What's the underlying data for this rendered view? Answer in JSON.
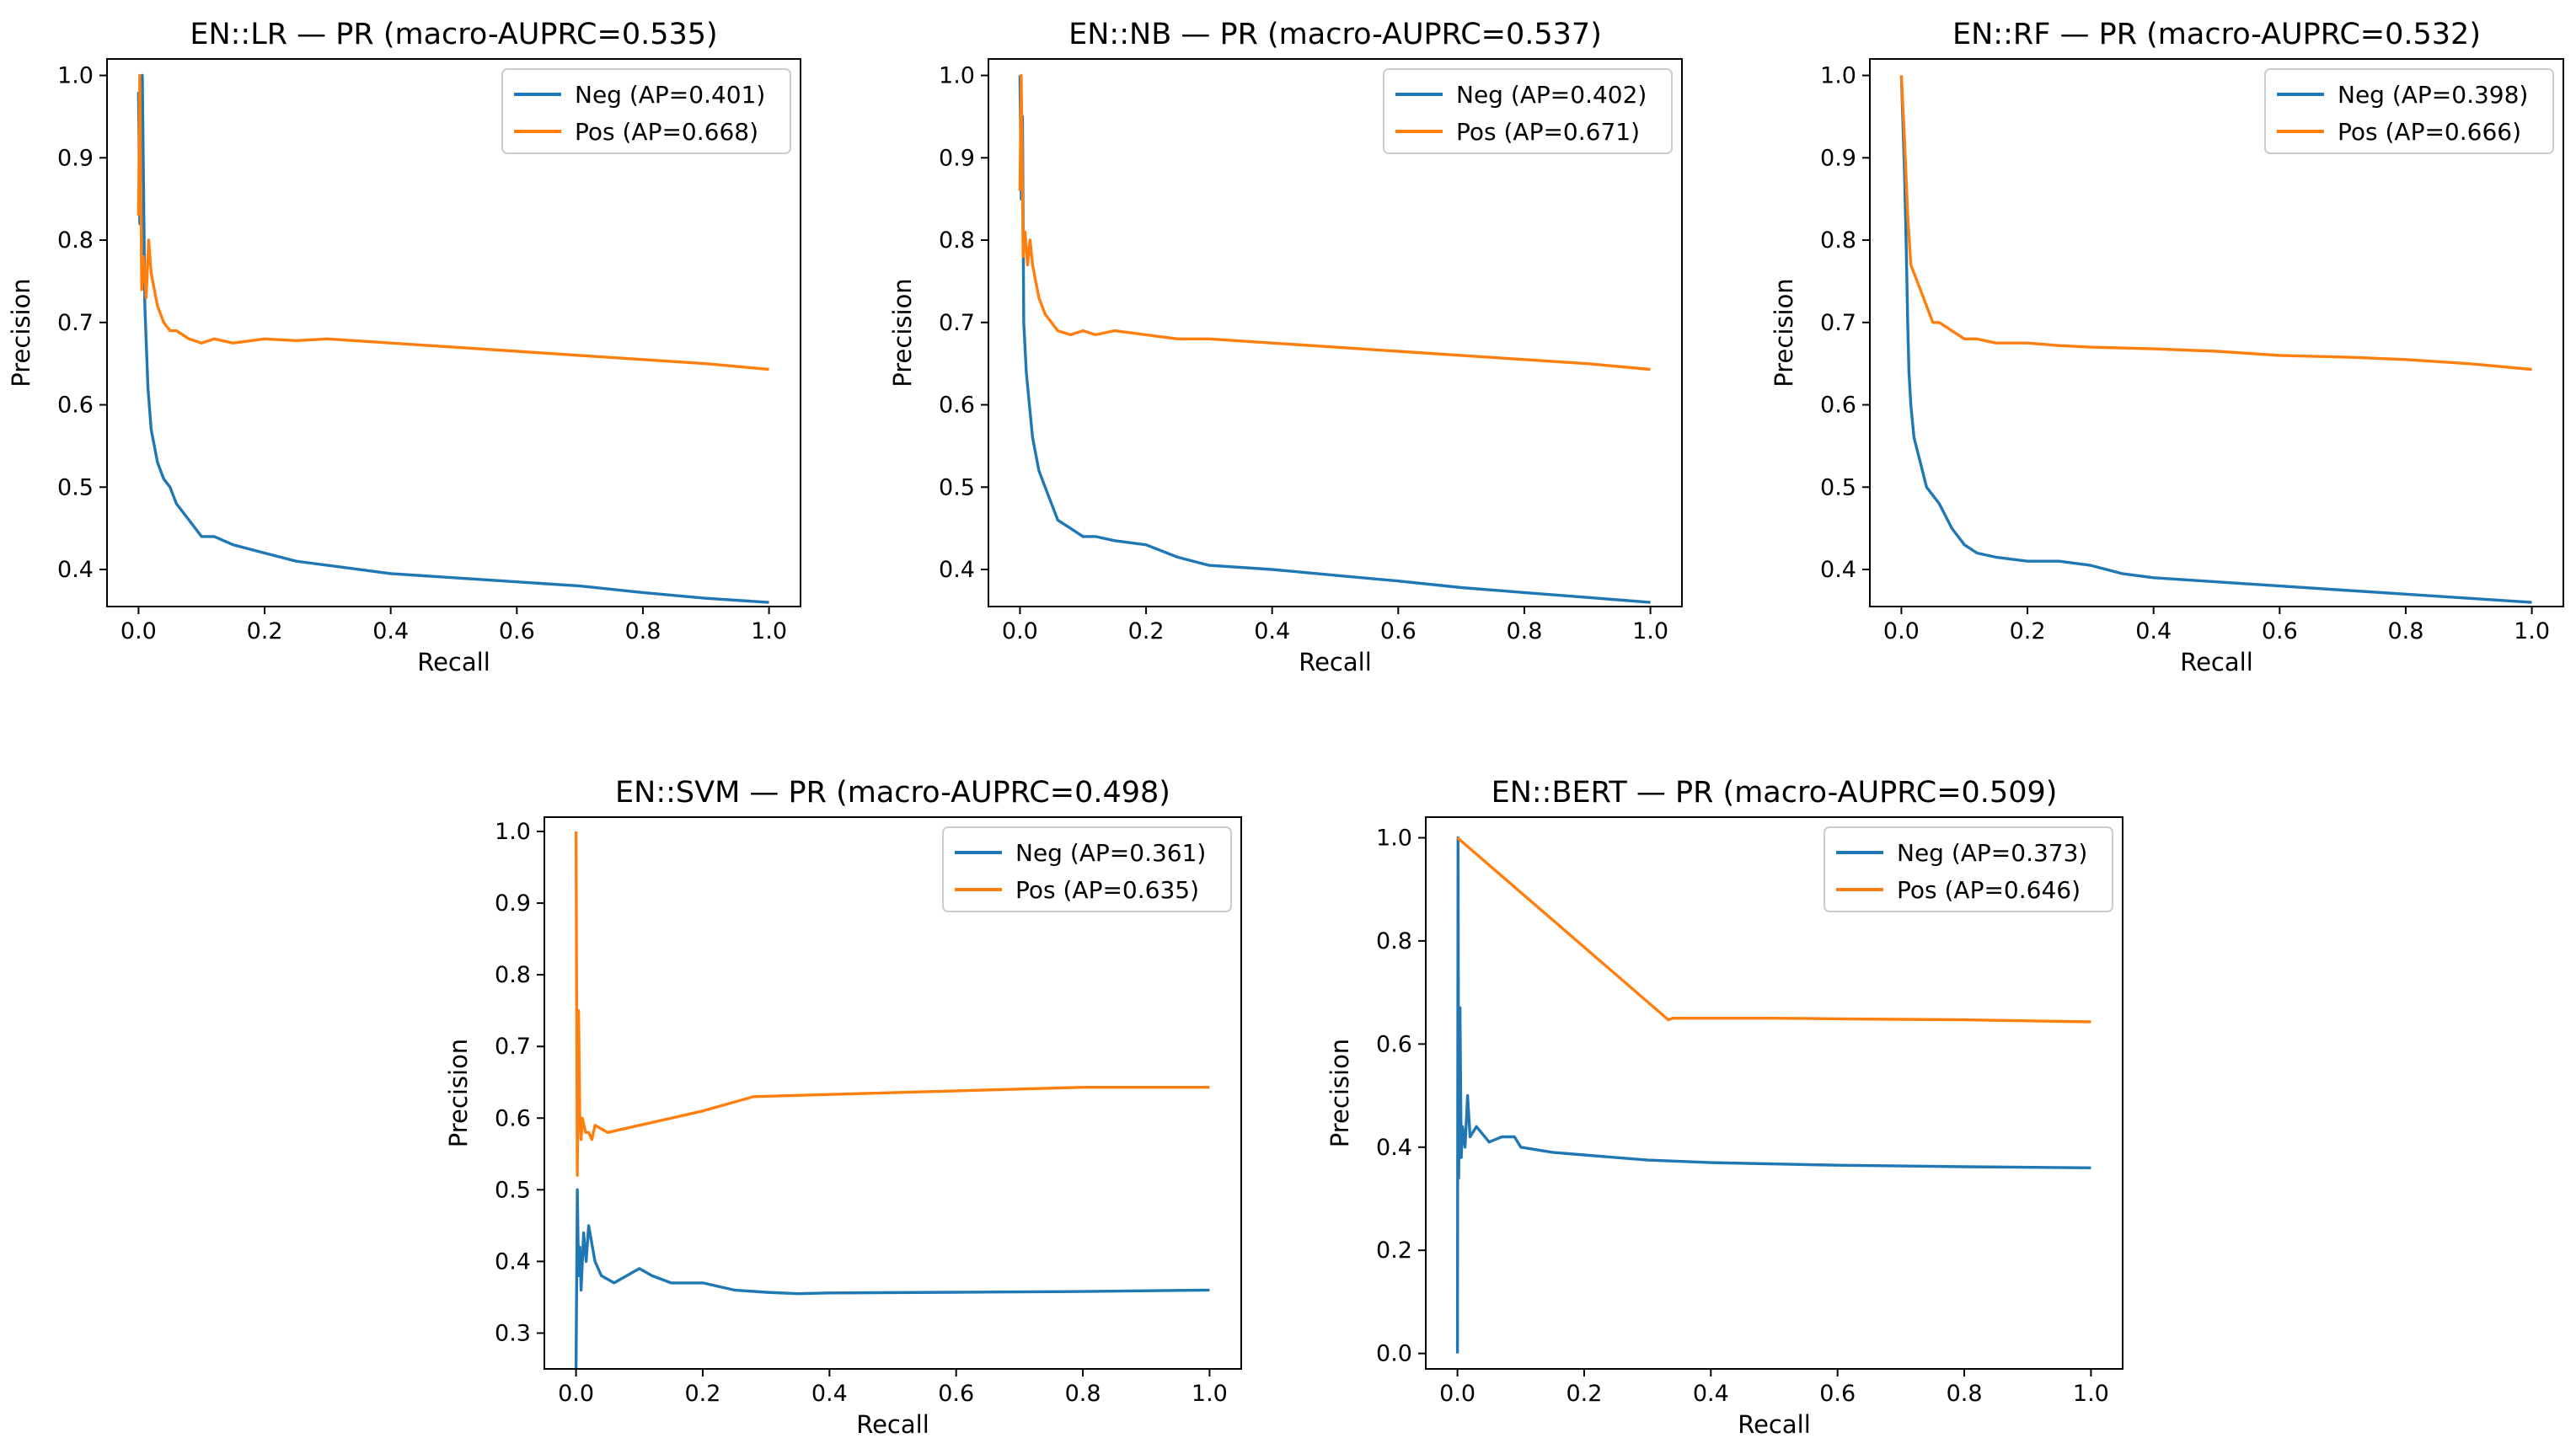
{
  "colors": {
    "neg": "#1f77b4",
    "pos": "#ff7f0e"
  },
  "chart_data": [
    {
      "type": "line",
      "title": "EN::LR — PR (macro-AUPRC=0.535)",
      "xlabel": "Recall",
      "ylabel": "Precision",
      "xlim": [
        -0.05,
        1.05
      ],
      "ylim": [
        0.355,
        1.02
      ],
      "xticks": [
        0.0,
        0.2,
        0.4,
        0.6,
        0.8,
        1.0
      ],
      "xtick_labels": [
        "0.0",
        "0.2",
        "0.4",
        "0.6",
        "0.8",
        "1.0"
      ],
      "yticks": [
        0.4,
        0.5,
        0.6,
        0.7,
        0.8,
        0.9,
        1.0
      ],
      "ytick_labels": [
        "0.4",
        "0.5",
        "0.6",
        "0.7",
        "0.8",
        "0.9",
        "1.0"
      ],
      "legend_position": "top-right",
      "series": [
        {
          "name": "Neg (AP=0.401)",
          "color_key": "neg",
          "x": [
            0.0,
            0.002,
            0.004,
            0.006,
            0.01,
            0.015,
            0.02,
            0.03,
            0.04,
            0.05,
            0.06,
            0.08,
            0.1,
            0.12,
            0.15,
            0.2,
            0.25,
            0.3,
            0.4,
            0.5,
            0.6,
            0.7,
            0.8,
            0.9,
            1.0
          ],
          "y": [
            0.98,
            0.82,
            0.9,
            1.0,
            0.72,
            0.62,
            0.57,
            0.53,
            0.51,
            0.5,
            0.48,
            0.46,
            0.44,
            0.44,
            0.43,
            0.42,
            0.41,
            0.405,
            0.395,
            0.39,
            0.385,
            0.38,
            0.372,
            0.365,
            0.36
          ]
        },
        {
          "name": "Pos (AP=0.668)",
          "color_key": "pos",
          "x": [
            0.0,
            0.002,
            0.005,
            0.008,
            0.012,
            0.016,
            0.02,
            0.025,
            0.03,
            0.04,
            0.05,
            0.06,
            0.08,
            0.1,
            0.12,
            0.15,
            0.2,
            0.25,
            0.3,
            0.4,
            0.5,
            0.6,
            0.7,
            0.8,
            0.9,
            1.0
          ],
          "y": [
            0.83,
            1.0,
            0.74,
            0.78,
            0.73,
            0.8,
            0.76,
            0.74,
            0.72,
            0.7,
            0.69,
            0.69,
            0.68,
            0.675,
            0.68,
            0.675,
            0.68,
            0.678,
            0.68,
            0.675,
            0.67,
            0.665,
            0.66,
            0.655,
            0.65,
            0.643
          ]
        }
      ]
    },
    {
      "type": "line",
      "title": "EN::NB — PR (macro-AUPRC=0.537)",
      "xlabel": "Recall",
      "ylabel": "Precision",
      "xlim": [
        -0.05,
        1.05
      ],
      "ylim": [
        0.355,
        1.02
      ],
      "xticks": [
        0.0,
        0.2,
        0.4,
        0.6,
        0.8,
        1.0
      ],
      "xtick_labels": [
        "0.0",
        "0.2",
        "0.4",
        "0.6",
        "0.8",
        "1.0"
      ],
      "yticks": [
        0.4,
        0.5,
        0.6,
        0.7,
        0.8,
        0.9,
        1.0
      ],
      "ytick_labels": [
        "0.4",
        "0.5",
        "0.6",
        "0.7",
        "0.8",
        "0.9",
        "1.0"
      ],
      "legend_position": "top-right",
      "series": [
        {
          "name": "Neg (AP=0.402)",
          "color_key": "neg",
          "x": [
            0.0,
            0.002,
            0.004,
            0.006,
            0.01,
            0.015,
            0.02,
            0.03,
            0.04,
            0.05,
            0.06,
            0.08,
            0.1,
            0.12,
            0.15,
            0.2,
            0.25,
            0.3,
            0.4,
            0.5,
            0.6,
            0.7,
            0.8,
            0.9,
            1.0
          ],
          "y": [
            1.0,
            0.85,
            0.95,
            0.7,
            0.64,
            0.6,
            0.56,
            0.52,
            0.5,
            0.48,
            0.46,
            0.45,
            0.44,
            0.44,
            0.435,
            0.43,
            0.415,
            0.405,
            0.4,
            0.393,
            0.386,
            0.378,
            0.372,
            0.366,
            0.36
          ]
        },
        {
          "name": "Pos (AP=0.671)",
          "color_key": "pos",
          "x": [
            0.0,
            0.002,
            0.005,
            0.008,
            0.012,
            0.016,
            0.02,
            0.025,
            0.03,
            0.04,
            0.05,
            0.06,
            0.08,
            0.1,
            0.12,
            0.15,
            0.2,
            0.25,
            0.3,
            0.4,
            0.5,
            0.6,
            0.7,
            0.8,
            0.9,
            1.0
          ],
          "y": [
            0.86,
            1.0,
            0.78,
            0.81,
            0.77,
            0.8,
            0.77,
            0.75,
            0.73,
            0.71,
            0.7,
            0.69,
            0.685,
            0.69,
            0.685,
            0.69,
            0.685,
            0.68,
            0.68,
            0.675,
            0.67,
            0.665,
            0.66,
            0.655,
            0.65,
            0.643
          ]
        }
      ]
    },
    {
      "type": "line",
      "title": "EN::RF — PR (macro-AUPRC=0.532)",
      "xlabel": "Recall",
      "ylabel": "Precision",
      "xlim": [
        -0.05,
        1.05
      ],
      "ylim": [
        0.355,
        1.02
      ],
      "xticks": [
        0.0,
        0.2,
        0.4,
        0.6,
        0.8,
        1.0
      ],
      "xtick_labels": [
        "0.0",
        "0.2",
        "0.4",
        "0.6",
        "0.8",
        "1.0"
      ],
      "yticks": [
        0.4,
        0.5,
        0.6,
        0.7,
        0.8,
        0.9,
        1.0
      ],
      "ytick_labels": [
        "0.4",
        "0.5",
        "0.6",
        "0.7",
        "0.8",
        "0.9",
        "1.0"
      ],
      "legend_position": "top-right",
      "series": [
        {
          "name": "Neg (AP=0.398)",
          "color_key": "neg",
          "x": [
            0.0,
            0.005,
            0.008,
            0.01,
            0.012,
            0.015,
            0.02,
            0.03,
            0.04,
            0.05,
            0.06,
            0.08,
            0.1,
            0.12,
            0.15,
            0.2,
            0.25,
            0.3,
            0.35,
            0.4,
            0.5,
            0.6,
            0.7,
            0.8,
            0.9,
            1.0
          ],
          "y": [
            1.0,
            0.88,
            0.78,
            0.7,
            0.64,
            0.6,
            0.56,
            0.53,
            0.5,
            0.49,
            0.48,
            0.45,
            0.43,
            0.42,
            0.415,
            0.41,
            0.41,
            0.405,
            0.395,
            0.39,
            0.385,
            0.38,
            0.375,
            0.37,
            0.365,
            0.36
          ]
        },
        {
          "name": "Pos (AP=0.666)",
          "color_key": "pos",
          "x": [
            0.0,
            0.005,
            0.01,
            0.015,
            0.02,
            0.03,
            0.04,
            0.05,
            0.06,
            0.08,
            0.1,
            0.12,
            0.15,
            0.2,
            0.25,
            0.3,
            0.4,
            0.5,
            0.6,
            0.7,
            0.8,
            0.9,
            1.0
          ],
          "y": [
            1.0,
            0.92,
            0.83,
            0.77,
            0.76,
            0.74,
            0.72,
            0.7,
            0.7,
            0.69,
            0.68,
            0.68,
            0.675,
            0.675,
            0.672,
            0.67,
            0.668,
            0.665,
            0.66,
            0.658,
            0.655,
            0.65,
            0.643
          ]
        }
      ]
    },
    {
      "type": "line",
      "title": "EN::SVM — PR (macro-AUPRC=0.498)",
      "xlabel": "Recall",
      "ylabel": "Precision",
      "xlim": [
        -0.05,
        1.05
      ],
      "ylim": [
        0.25,
        1.02
      ],
      "xticks": [
        0.0,
        0.2,
        0.4,
        0.6,
        0.8,
        1.0
      ],
      "xtick_labels": [
        "0.0",
        "0.2",
        "0.4",
        "0.6",
        "0.8",
        "1.0"
      ],
      "yticks": [
        0.3,
        0.4,
        0.5,
        0.6,
        0.7,
        0.8,
        0.9,
        1.0
      ],
      "ytick_labels": [
        "0.3",
        "0.4",
        "0.5",
        "0.6",
        "0.7",
        "0.8",
        "0.9",
        "1.0"
      ],
      "legend_position": "top-right",
      "series": [
        {
          "name": "Neg (AP=0.361)",
          "color_key": "neg",
          "x": [
            0.0,
            0.002,
            0.004,
            0.006,
            0.008,
            0.012,
            0.016,
            0.02,
            0.03,
            0.04,
            0.06,
            0.08,
            0.1,
            0.12,
            0.15,
            0.2,
            0.25,
            0.3,
            0.35,
            0.4,
            0.6,
            0.8,
            1.0
          ],
          "y": [
            0.25,
            0.5,
            0.38,
            0.42,
            0.36,
            0.44,
            0.4,
            0.45,
            0.4,
            0.38,
            0.37,
            0.38,
            0.39,
            0.38,
            0.37,
            0.37,
            0.36,
            0.357,
            0.355,
            0.356,
            0.357,
            0.358,
            0.36
          ]
        },
        {
          "name": "Pos (AP=0.635)",
          "color_key": "pos",
          "x": [
            0.0,
            0.002,
            0.004,
            0.006,
            0.008,
            0.01,
            0.015,
            0.02,
            0.025,
            0.03,
            0.05,
            0.1,
            0.2,
            0.28,
            0.4,
            0.6,
            0.8,
            1.0
          ],
          "y": [
            1.0,
            0.52,
            0.75,
            0.6,
            0.57,
            0.6,
            0.58,
            0.58,
            0.57,
            0.59,
            0.58,
            0.59,
            0.61,
            0.63,
            0.633,
            0.638,
            0.643,
            0.643
          ]
        }
      ]
    },
    {
      "type": "line",
      "title": "EN::BERT — PR (macro-AUPRC=0.509)",
      "xlabel": "Recall",
      "ylabel": "Precision",
      "xlim": [
        -0.05,
        1.05
      ],
      "ylim": [
        -0.03,
        1.04
      ],
      "xticks": [
        0.0,
        0.2,
        0.4,
        0.6,
        0.8,
        1.0
      ],
      "xtick_labels": [
        "0.0",
        "0.2",
        "0.4",
        "0.6",
        "0.8",
        "1.0"
      ],
      "yticks": [
        0.0,
        0.2,
        0.4,
        0.6,
        0.8,
        1.0
      ],
      "ytick_labels": [
        "0.0",
        "0.2",
        "0.4",
        "0.6",
        "0.8",
        "1.0"
      ],
      "legend_position": "top-right",
      "series": [
        {
          "name": "Neg (AP=0.373)",
          "color_key": "neg",
          "x": [
            0.0,
            0.001,
            0.002,
            0.004,
            0.006,
            0.008,
            0.012,
            0.016,
            0.02,
            0.03,
            0.05,
            0.07,
            0.09,
            0.1,
            0.15,
            0.2,
            0.3,
            0.4,
            0.6,
            0.8,
            1.0
          ],
          "y": [
            0.0,
            1.0,
            0.34,
            0.67,
            0.38,
            0.44,
            0.4,
            0.5,
            0.42,
            0.44,
            0.41,
            0.42,
            0.42,
            0.4,
            0.39,
            0.385,
            0.375,
            0.37,
            0.365,
            0.362,
            0.36
          ]
        },
        {
          "name": "Pos (AP=0.646)",
          "color_key": "pos",
          "x": [
            0.0,
            0.333,
            0.34,
            0.4,
            0.5,
            0.6,
            0.7,
            0.8,
            0.9,
            1.0
          ],
          "y": [
            1.0,
            0.647,
            0.65,
            0.65,
            0.65,
            0.649,
            0.648,
            0.647,
            0.645,
            0.643
          ]
        }
      ]
    }
  ]
}
